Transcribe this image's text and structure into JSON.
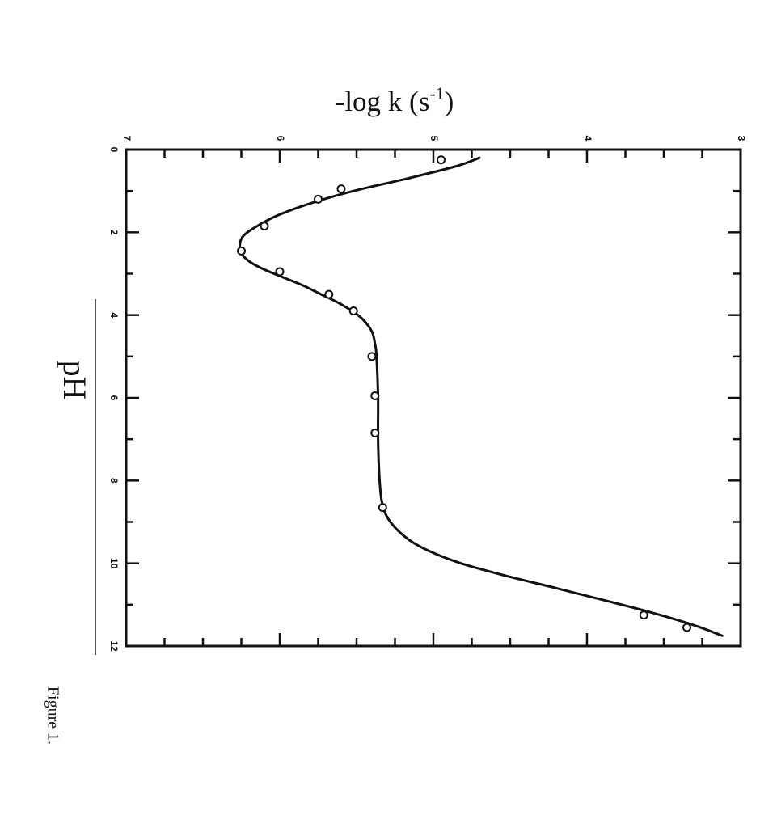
{
  "chart_data": {
    "type": "line",
    "ylabel": "-log k (s",
    "ylabel_sup": "-1",
    "ylabel_close": ")",
    "xlabel": "pH",
    "caption": "Figure 1.",
    "xlim": [
      0,
      12
    ],
    "ylim": [
      7,
      3
    ],
    "x_ticks": [
      0,
      2,
      4,
      6,
      8,
      10,
      12
    ],
    "y_ticks": [
      7,
      6,
      5,
      4,
      3
    ],
    "curve": {
      "x": [
        0.2,
        0.4,
        0.7,
        1.0,
        1.3,
        1.6,
        1.9,
        2.1,
        2.3,
        2.5,
        2.7,
        2.9,
        3.1,
        3.3,
        3.5,
        3.7,
        3.9,
        4.1,
        4.4,
        4.7,
        5.0,
        6.0,
        7.0,
        8.0,
        8.6,
        9.0,
        9.4,
        9.7,
        10.0,
        10.3,
        10.6,
        10.9,
        11.2,
        11.5,
        11.75
      ],
      "y": [
        4.7,
        4.85,
        5.17,
        5.52,
        5.8,
        6.02,
        6.17,
        6.24,
        6.26,
        6.25,
        6.2,
        6.1,
        5.97,
        5.84,
        5.73,
        5.62,
        5.53,
        5.46,
        5.4,
        5.38,
        5.37,
        5.36,
        5.36,
        5.35,
        5.33,
        5.28,
        5.17,
        5.03,
        4.82,
        4.53,
        4.2,
        3.88,
        3.57,
        3.3,
        3.12
      ]
    },
    "points": {
      "x": [
        0.25,
        0.95,
        1.2,
        1.85,
        2.45,
        2.95,
        3.5,
        3.9,
        5.0,
        5.95,
        6.85,
        8.65,
        11.25,
        11.55
      ],
      "y": [
        4.95,
        5.6,
        5.75,
        6.1,
        6.25,
        6.0,
        5.68,
        5.52,
        5.4,
        5.38,
        5.38,
        5.33,
        3.63,
        3.35
      ]
    }
  }
}
